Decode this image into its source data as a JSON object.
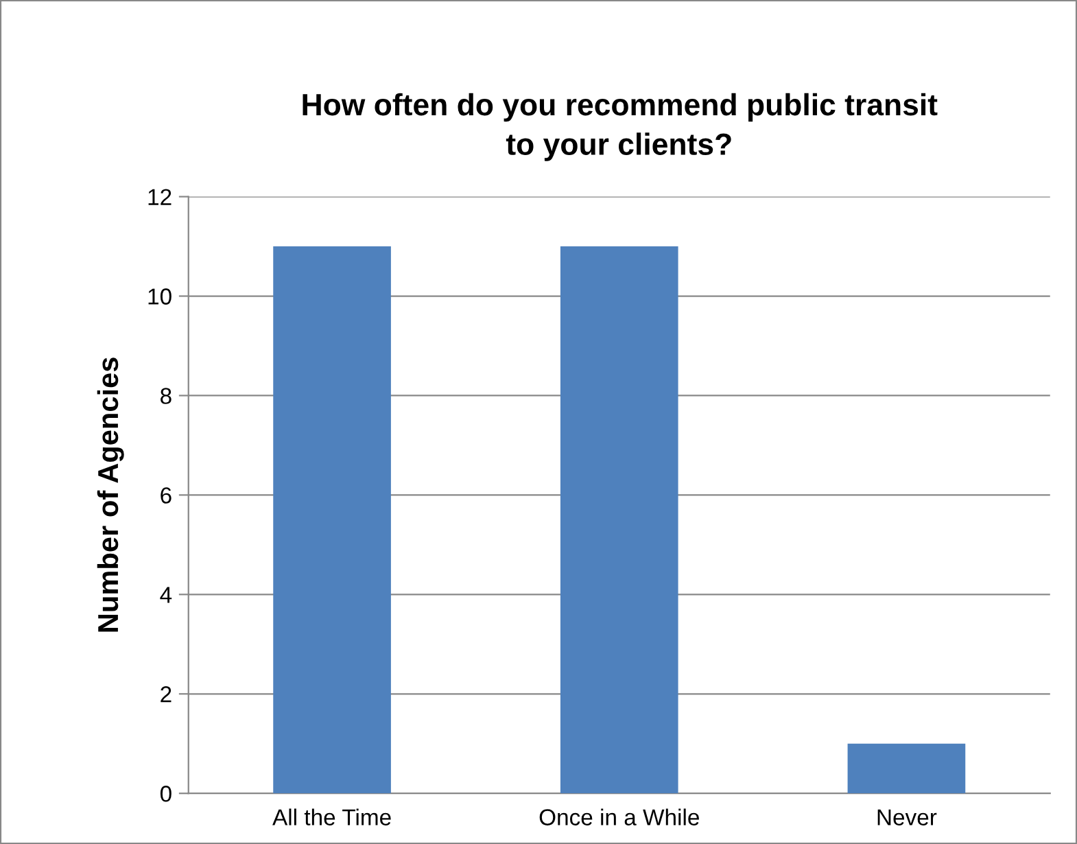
{
  "chart_data": {
    "type": "bar",
    "title": "How often do you recommend public transit\nto your clients?",
    "ylabel": "Number of Agencies",
    "categories": [
      "All the Time",
      "Once in a While",
      "Never"
    ],
    "values": [
      11,
      11,
      1
    ],
    "color": "#4f81bd",
    "ylim": [
      0,
      12
    ],
    "yticks": [
      0,
      2,
      4,
      6,
      8,
      10,
      12
    ],
    "grid": "y"
  }
}
